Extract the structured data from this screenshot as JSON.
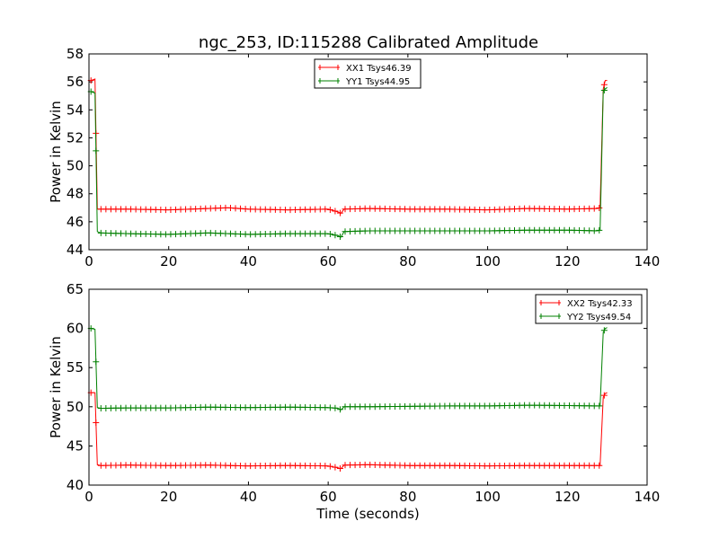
{
  "chart_data": [
    {
      "type": "line",
      "title": "ngc_253, ID:115288 Calibrated Amplitude",
      "xlabel": "",
      "ylabel": "Power in Kelvin",
      "xlim": [
        0,
        140
      ],
      "ylim": [
        44,
        58
      ],
      "xticks": [
        "0",
        "20",
        "40",
        "60",
        "80",
        "100",
        "120",
        "140"
      ],
      "yticks": [
        "44",
        "46",
        "48",
        "50",
        "52",
        "54",
        "56",
        "58"
      ],
      "legend_position": "top-center",
      "series": [
        {
          "name": "XX1 Tsys46.39",
          "color": "#ff0000",
          "x": [
            0.5,
            1.5,
            2.1,
            3,
            10,
            20,
            30,
            35,
            40,
            50,
            60,
            62.5,
            63.2,
            64,
            70,
            80,
            90,
            100,
            110,
            120,
            127.5,
            128.2,
            129,
            129.5,
            130
          ],
          "y": [
            56.1,
            56.2,
            46.9,
            46.9,
            46.9,
            46.85,
            46.95,
            47.0,
            46.9,
            46.85,
            46.9,
            46.7,
            46.6,
            46.9,
            46.95,
            46.9,
            46.9,
            46.85,
            46.95,
            46.9,
            46.95,
            47.0,
            55.5,
            56.1,
            56.1
          ]
        },
        {
          "name": "YY1 Tsys44.95",
          "color": "#008000",
          "x": [
            0.5,
            1.5,
            2.1,
            3,
            10,
            20,
            30,
            40,
            50,
            60,
            62.5,
            63.2,
            64,
            70,
            80,
            90,
            100,
            110,
            120,
            127.5,
            128.2,
            129,
            129.5,
            130
          ],
          "y": [
            55.3,
            55.2,
            45.3,
            45.2,
            45.15,
            45.1,
            45.2,
            45.1,
            45.15,
            45.15,
            45.0,
            44.9,
            45.3,
            45.35,
            45.35,
            45.35,
            45.35,
            45.4,
            45.4,
            45.35,
            45.4,
            55.3,
            55.5,
            55.6
          ]
        }
      ]
    },
    {
      "type": "line",
      "title": "",
      "xlabel": "Time (seconds)",
      "ylabel": "Power in Kelvin",
      "xlim": [
        0,
        140
      ],
      "ylim": [
        40,
        65
      ],
      "xticks": [
        "0",
        "20",
        "40",
        "60",
        "80",
        "100",
        "120",
        "140"
      ],
      "yticks": [
        "40",
        "45",
        "50",
        "55",
        "60",
        "65"
      ],
      "legend_position": "top-right",
      "series": [
        {
          "name": "XX2 Tsys42.33",
          "color": "#ff0000",
          "x": [
            0.5,
            1.5,
            2.1,
            3,
            10,
            20,
            30,
            40,
            50,
            60,
            62.5,
            63.2,
            64,
            70,
            80,
            90,
            100,
            110,
            120,
            127.5,
            128.2,
            129,
            129.5,
            130
          ],
          "y": [
            51.8,
            51.8,
            42.6,
            42.5,
            42.55,
            42.5,
            42.55,
            42.45,
            42.5,
            42.45,
            42.2,
            42.1,
            42.55,
            42.6,
            42.5,
            42.5,
            42.45,
            42.5,
            42.5,
            42.5,
            42.5,
            51.2,
            51.7,
            51.8
          ]
        },
        {
          "name": "YY2 Tsys49.54",
          "color": "#008000",
          "x": [
            0.5,
            1.5,
            2.1,
            3,
            10,
            20,
            30,
            40,
            50,
            60,
            62.5,
            63.2,
            64,
            70,
            80,
            90,
            100,
            110,
            120,
            127.5,
            128.2,
            129,
            129.5,
            130
          ],
          "y": [
            60.0,
            59.9,
            49.9,
            49.8,
            49.85,
            49.85,
            49.95,
            49.9,
            49.95,
            49.9,
            49.8,
            49.6,
            50.0,
            50.0,
            50.05,
            50.1,
            50.1,
            50.2,
            50.15,
            50.1,
            50.1,
            59.5,
            60.0,
            60.1
          ]
        }
      ]
    }
  ]
}
